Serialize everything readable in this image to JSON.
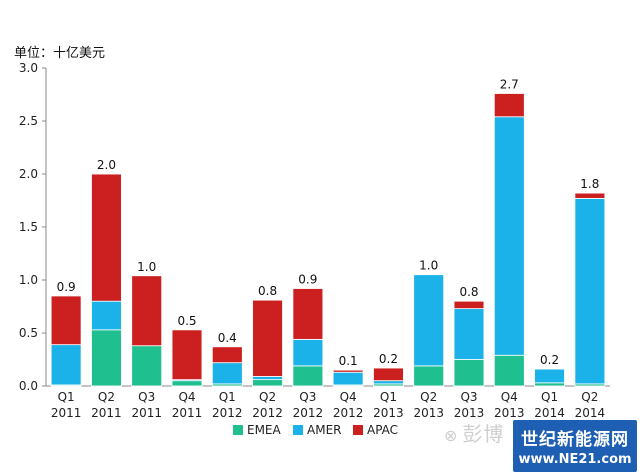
{
  "chart_data": {
    "type": "bar",
    "stacked": true,
    "unit_label": "单位：十亿美元",
    "categories": [
      [
        "Q1",
        "2011"
      ],
      [
        "Q2",
        "2011"
      ],
      [
        "Q3",
        "2011"
      ],
      [
        "Q4",
        "2011"
      ],
      [
        "Q1",
        "2012"
      ],
      [
        "Q2",
        "2012"
      ],
      [
        "Q3",
        "2012"
      ],
      [
        "Q4",
        "2012"
      ],
      [
        "Q1",
        "2013"
      ],
      [
        "Q2",
        "2013"
      ],
      [
        "Q3",
        "2013"
      ],
      [
        "Q4",
        "2013"
      ],
      [
        "Q1",
        "2014"
      ],
      [
        "Q2",
        "2014"
      ]
    ],
    "series": [
      {
        "name": "EMEA",
        "color": "#1fbf8f",
        "values": [
          0.01,
          0.53,
          0.38,
          0.05,
          0.02,
          0.06,
          0.19,
          0.01,
          0.02,
          0.19,
          0.25,
          0.29,
          0.03,
          0.02
        ]
      },
      {
        "name": "AMER",
        "color": "#1ab2e8",
        "values": [
          0.38,
          0.27,
          0.0,
          0.01,
          0.2,
          0.03,
          0.25,
          0.12,
          0.03,
          0.86,
          0.48,
          2.25,
          0.13,
          1.75
        ]
      },
      {
        "name": "APAC",
        "color": "#cc1f1f",
        "values": [
          0.46,
          1.2,
          0.66,
          0.47,
          0.15,
          0.72,
          0.48,
          0.02,
          0.12,
          0.0,
          0.07,
          0.22,
          0.0,
          0.05
        ]
      }
    ],
    "totals_labels": [
      "0.9",
      "2.0",
      "1.0",
      "0.5",
      "0.4",
      "0.8",
      "0.9",
      "0.1",
      "0.2",
      "1.0",
      "0.8",
      "2.7",
      "0.2",
      "1.8"
    ],
    "y_ticks": [
      "0.0",
      "0.5",
      "1.0",
      "1.5",
      "2.0",
      "2.5",
      "3.0"
    ],
    "ylim": [
      0,
      3.0
    ],
    "legend_position": "bottom-center"
  },
  "watermark": {
    "icon": "wechat-icon",
    "text": "彭博"
  },
  "logo": {
    "line1": "世纪新能源网",
    "line2": "www.NE21.com"
  }
}
